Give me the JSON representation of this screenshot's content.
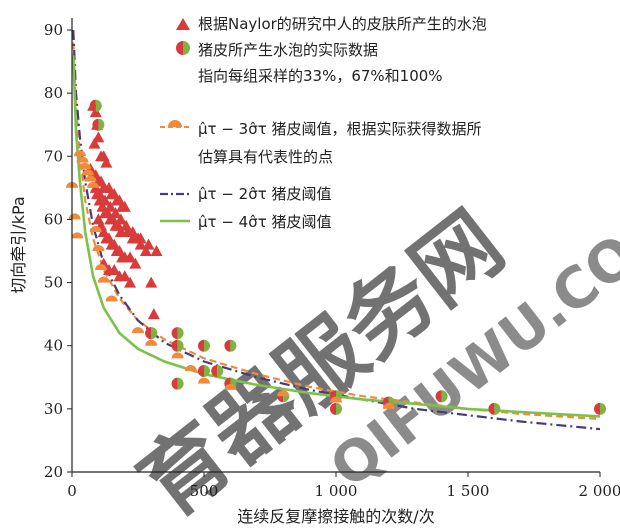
{
  "chart_data": {
    "type": "scatter",
    "xlabel": "连续反复摩擦接触的次数/次",
    "ylabel": "切向牵引/kPa",
    "xlim": [
      0,
      2000
    ],
    "ylim": [
      20,
      90
    ],
    "x_ticks": [
      0,
      500,
      1000,
      1500,
      2000
    ],
    "x_tick_labels": [
      "0",
      "500",
      "1 000",
      "1 500",
      "2 000"
    ],
    "y_ticks": [
      20,
      30,
      40,
      50,
      60,
      70,
      80,
      90
    ],
    "y_tick_labels": [
      "20",
      "30",
      "40",
      "50",
      "60",
      "70",
      "80",
      "90"
    ],
    "grid": false,
    "legend_position": "top-right",
    "legend": [
      {
        "label": "根据Naylor的研究中人的皮肤所产生的水泡",
        "marker": "triangle",
        "color": "#d93a3a"
      },
      {
        "label": "猪皮所产生水泡的实际数据",
        "label2": "指向每组采样的33%，67%和100%",
        "marker": "split-circle",
        "color": "#d93a3a",
        "color2": "#7cb342"
      },
      {
        "label": "μ̂τ − 3σ̂τ 猪皮阈值，根据实际获得数据所",
        "label2": "估算具有代表性的点",
        "marker": "half-circle-dash",
        "color": "#f08a3c"
      },
      {
        "label": "μ̂τ − 2σ̂τ 猪皮阈值",
        "marker": "dash-dot",
        "color": "#4a3a7a"
      },
      {
        "label": "μ̂τ − 4σ̂τ 猪皮阈值",
        "marker": "solid",
        "color": "#7cc24a"
      }
    ],
    "series": [
      {
        "name": "根据Naylor的研究中人的皮肤所产生的水泡",
        "kind": "scatter-triangle",
        "color": "#d93a3a",
        "x": [
          80,
          90,
          95,
          100,
          85,
          110,
          120,
          130,
          70,
          75,
          90,
          100,
          110,
          120,
          140,
          150,
          160,
          170,
          180,
          190,
          200,
          95,
          105,
          115,
          125,
          135,
          145,
          155,
          165,
          175,
          185,
          210,
          230,
          250,
          260,
          280,
          300,
          310,
          100,
          110,
          120,
          130,
          140,
          150,
          160,
          170,
          180,
          190,
          200,
          220,
          240,
          120,
          140,
          160,
          180,
          200,
          220,
          90,
          105,
          125,
          145,
          165,
          185,
          205,
          230,
          260,
          290,
          320
        ],
        "y": [
          78,
          77,
          75,
          73,
          72,
          70,
          70,
          69,
          68,
          67,
          67,
          66,
          66,
          65,
          65,
          64,
          64,
          63,
          63,
          62,
          62,
          64,
          63,
          62,
          61,
          61,
          60,
          60,
          59,
          59,
          58,
          58,
          57,
          57,
          56,
          55,
          50,
          45,
          60,
          59,
          58,
          57,
          57,
          56,
          56,
          55,
          55,
          54,
          54,
          54,
          53,
          53,
          52,
          52,
          51,
          51,
          50,
          65,
          64,
          63,
          62,
          61,
          60,
          59,
          58,
          57,
          56,
          55
        ]
      },
      {
        "name": "猪皮所产生水泡的实际数据",
        "kind": "scatter-splitcircle",
        "color": "#d93a3a",
        "color2": "#7cb342",
        "x": [
          90,
          100,
          300,
          400,
          500,
          600,
          300,
          400,
          550,
          600,
          400,
          500,
          600,
          800,
          1000,
          1200,
          1400,
          1000,
          1600,
          2000
        ],
        "y": [
          78,
          75,
          42,
          42,
          40,
          40,
          42,
          34,
          36,
          34,
          40,
          36,
          34,
          32,
          32,
          31,
          32,
          30,
          30,
          30
        ]
      },
      {
        "name": "μ̂τ − 3σ̂τ 猪皮阈值，根据实际获得数据所估算具有代表性的点",
        "kind": "scatter-orange",
        "color": "#f08a3c",
        "x": [
          0,
          10,
          20,
          30,
          40,
          50,
          60,
          70,
          80,
          90,
          100,
          110,
          120,
          150,
          250,
          300,
          400,
          450,
          500,
          600,
          800,
          1000,
          1200
        ],
        "y": [
          65,
          60,
          57,
          70,
          69,
          68,
          67,
          66,
          65,
          58,
          55,
          52,
          50,
          47,
          42,
          40,
          38,
          36,
          34,
          33,
          32,
          31,
          30
        ]
      },
      {
        "name": "μ̂τ − 3σ̂τ 猪皮阈值",
        "kind": "line-dashed",
        "color": "#f08a3c",
        "x": [
          5,
          15,
          30,
          50,
          80,
          120,
          180,
          250,
          350,
          500,
          700,
          900,
          1100,
          1300,
          1500,
          1700,
          2000
        ],
        "y": [
          88,
          78,
          70,
          63,
          57,
          52,
          47.5,
          44,
          41,
          38,
          35.5,
          33.5,
          32,
          31,
          30,
          29.2,
          28.4
        ]
      },
      {
        "name": "μ̂τ − 2σ̂τ 猪皮阈值",
        "kind": "line-dashdot",
        "color": "#4a3a7a",
        "x": [
          5,
          15,
          30,
          50,
          80,
          120,
          180,
          250,
          350,
          500,
          700,
          900,
          1100,
          1300,
          1500,
          1700,
          2000
        ],
        "y": [
          90,
          80,
          73,
          66,
          59,
          53,
          48,
          44,
          40.5,
          37.5,
          35,
          33,
          31.5,
          30,
          29,
          28,
          26.8
        ]
      },
      {
        "name": "μ̂τ − 4σ̂τ 猪皮阈值",
        "kind": "line-solid",
        "color": "#7cc24a",
        "x": [
          5,
          15,
          30,
          50,
          80,
          120,
          180,
          250,
          350,
          500,
          700,
          900,
          1100,
          1300,
          1500,
          1700,
          2000
        ],
        "y": [
          86,
          74,
          66,
          58,
          51,
          46,
          42,
          39.5,
          37.5,
          35.5,
          33.8,
          32.5,
          31.5,
          30.8,
          30,
          29.5,
          28.8
        ]
      }
    ]
  },
  "watermark": {
    "text1": "育器服务网",
    "text2": "QIFUWU.COM",
    "color": "#b8d7ee"
  }
}
